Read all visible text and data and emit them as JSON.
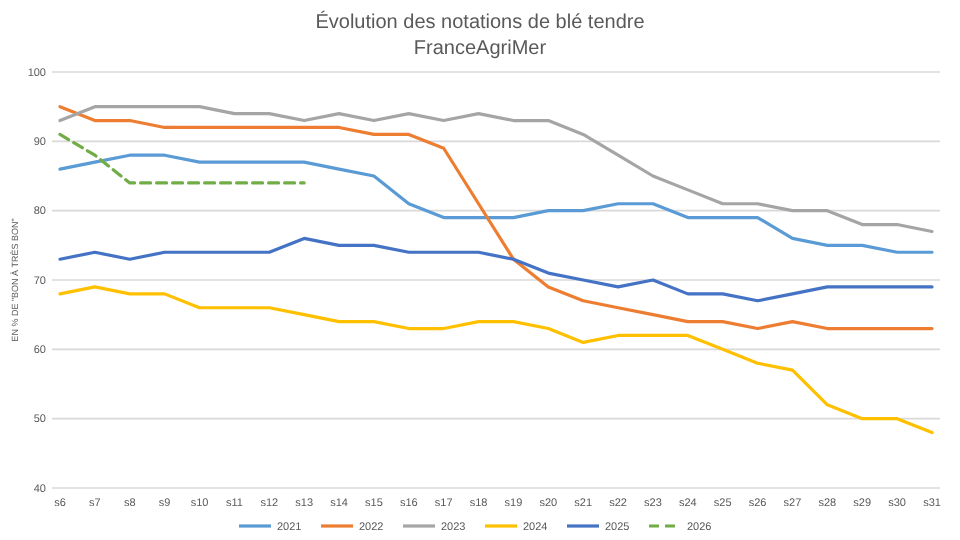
{
  "chart_data": {
    "type": "line",
    "title": "Évolution des notations de blé tendre",
    "subtitle": "FranceAgriMer",
    "ylabel": "EN % DE \"BON À TRÈS BON\"",
    "categories": [
      "s6",
      "s7",
      "s8",
      "s9",
      "s10",
      "s11",
      "s12",
      "s13",
      "s14",
      "s15",
      "s16",
      "s17",
      "s18",
      "s19",
      "s20",
      "s21",
      "s22",
      "s23",
      "s24",
      "s25",
      "s26",
      "s27",
      "s28",
      "s29",
      "s30",
      "s31"
    ],
    "ylim": [
      40,
      100
    ],
    "yticks": [
      40,
      50,
      60,
      70,
      80,
      90,
      100
    ],
    "grid": "y",
    "legend": "bottom",
    "marker": "none",
    "series": [
      {
        "name": "2021",
        "color": "#5b9bd5",
        "values": [
          86,
          87,
          88,
          88,
          87,
          87,
          87,
          87,
          86,
          85,
          81,
          79,
          79,
          79,
          80,
          80,
          81,
          81,
          79,
          79,
          79,
          76,
          75,
          75,
          74,
          74
        ]
      },
      {
        "name": "2022",
        "color": "#ed7d31",
        "values": [
          95,
          93,
          93,
          92,
          92,
          92,
          92,
          92,
          92,
          91,
          91,
          89,
          81,
          73,
          69,
          67,
          66,
          65,
          64,
          64,
          63,
          64,
          63,
          63,
          63,
          63
        ]
      },
      {
        "name": "2023",
        "color": "#a5a5a5",
        "values": [
          93,
          95,
          95,
          95,
          95,
          94,
          94,
          93,
          94,
          93,
          94,
          93,
          94,
          93,
          93,
          91,
          88,
          85,
          83,
          81,
          81,
          80,
          80,
          78,
          78,
          77
        ]
      },
      {
        "name": "2024",
        "color": "#ffc000",
        "values": [
          68,
          69,
          68,
          68,
          66,
          66,
          66,
          65,
          64,
          64,
          63,
          63,
          64,
          64,
          63,
          61,
          62,
          62,
          62,
          60,
          58,
          57,
          52,
          50,
          50,
          48
        ]
      },
      {
        "name": "2025",
        "color": "#4472c4",
        "values": [
          73,
          74,
          73,
          74,
          74,
          74,
          74,
          76,
          75,
          75,
          74,
          74,
          74,
          73,
          71,
          70,
          69,
          70,
          68,
          68,
          67,
          68,
          69,
          69,
          69,
          69
        ]
      },
      {
        "name": "2026",
        "color": "#70ad47",
        "line_style": "dashed",
        "values": [
          91,
          88,
          84,
          84,
          84,
          84,
          84,
          84,
          null,
          null,
          null,
          null,
          null,
          null,
          null,
          null,
          null,
          null,
          null,
          null,
          null,
          null,
          null,
          null,
          null,
          null
        ]
      }
    ]
  }
}
